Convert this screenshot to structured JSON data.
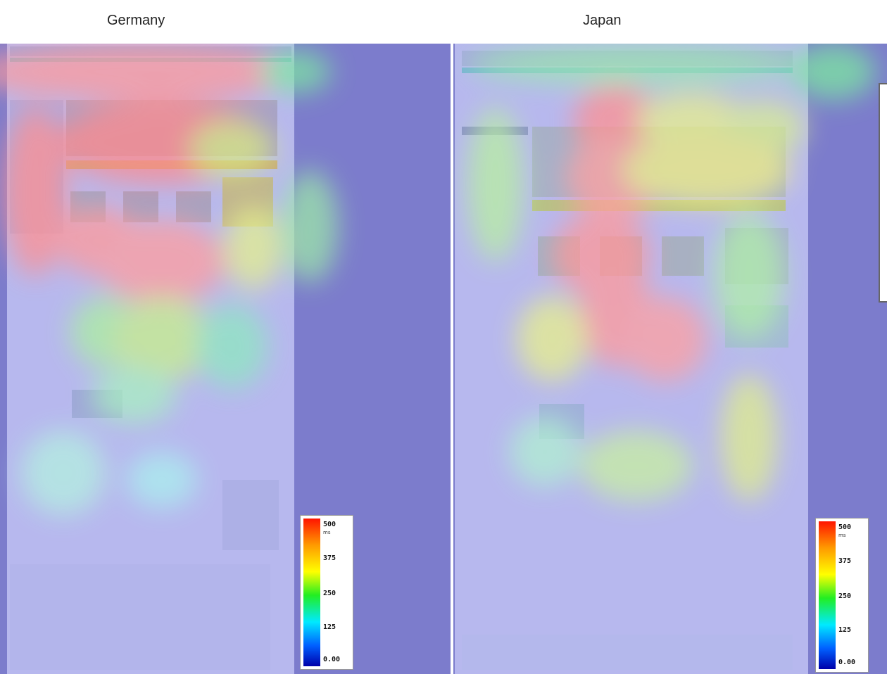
{
  "panels": [
    {
      "country": "Germany",
      "legend": {
        "ticks": [
          "500",
          "375",
          "250",
          "125",
          "0.00"
        ],
        "unit": "ms"
      }
    },
    {
      "country": "Japan",
      "legend": {
        "ticks": [
          "500",
          "375",
          "250",
          "125",
          "0.00"
        ],
        "unit": "ms"
      }
    }
  ],
  "colors": {
    "panel_background": "#7c7ccc",
    "page_tint": "#b7b8ee",
    "heat_low": "#0000aa",
    "heat_high": "#ff1400"
  }
}
